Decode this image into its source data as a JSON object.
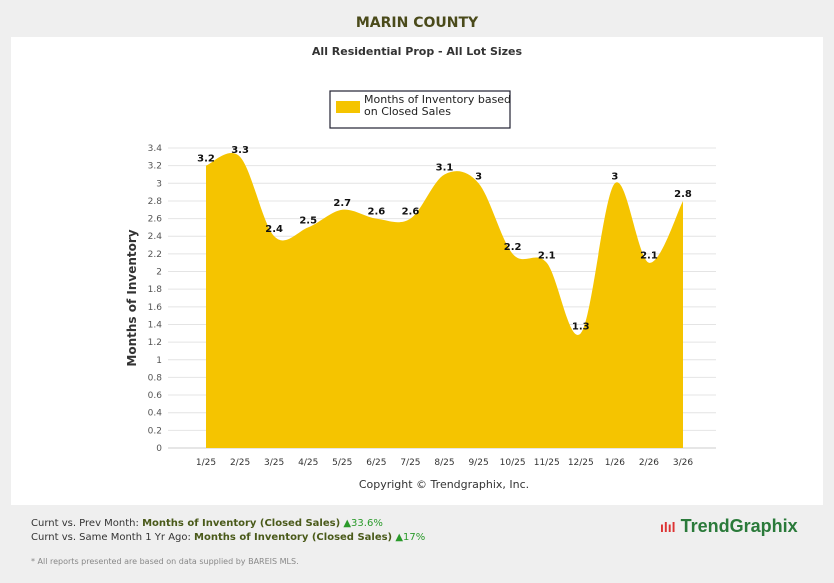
{
  "header": {
    "title": "MARIN COUNTY",
    "subtitle": "All Residential Prop - All Lot Sizes"
  },
  "chart_data": {
    "type": "area",
    "title": "All Residential Prop - All Lot Sizes",
    "ylabel": "Months of Inventory",
    "xlabel": "",
    "categories": [
      "1/25",
      "2/25",
      "3/25",
      "4/25",
      "5/25",
      "6/25",
      "7/25",
      "8/25",
      "9/25",
      "10/25",
      "11/25",
      "12/25",
      "1/26",
      "2/26",
      "3/26"
    ],
    "series": [
      {
        "name": "Months of Inventory based on Closed Sales",
        "values": [
          3.2,
          3.3,
          2.4,
          2.5,
          2.7,
          2.6,
          2.6,
          3.1,
          3,
          2.2,
          2.1,
          1.3,
          3,
          2.1,
          2.8
        ],
        "labels": [
          "3.2",
          "3.3",
          "2.4",
          "2.5",
          "2.7",
          "2.6",
          "2.6",
          "3.1",
          "3",
          "2.2",
          "2.1",
          "1.3",
          "3",
          "2.1",
          "2.8"
        ]
      }
    ],
    "ylim": [
      0,
      3.4
    ],
    "yticks": [
      "0",
      "0.2",
      "0.4",
      "0.6",
      "0.8",
      "1",
      "1.2",
      "1.4",
      "1.6",
      "1.8",
      "2",
      "2.2",
      "2.4",
      "2.6",
      "2.8",
      "3",
      "3.2",
      "3.4"
    ],
    "grid": true,
    "legend": "top-center",
    "color": "#f5c400",
    "credit": "Copyright © Trendgraphix, Inc."
  },
  "footer": {
    "line1_prefix": "Curnt vs. Prev Month: ",
    "line1_metric": "Months of Inventory (Closed Sales)",
    "line1_change": "▲33.6%",
    "line2_prefix": "Curnt vs. Same Month 1 Yr Ago: ",
    "line2_metric": "Months of Inventory (Closed Sales)",
    "line2_change": "▲17%",
    "note": "* All reports presented are based on data supplied by BAREIS MLS.",
    "logo": "TrendGraphix"
  }
}
